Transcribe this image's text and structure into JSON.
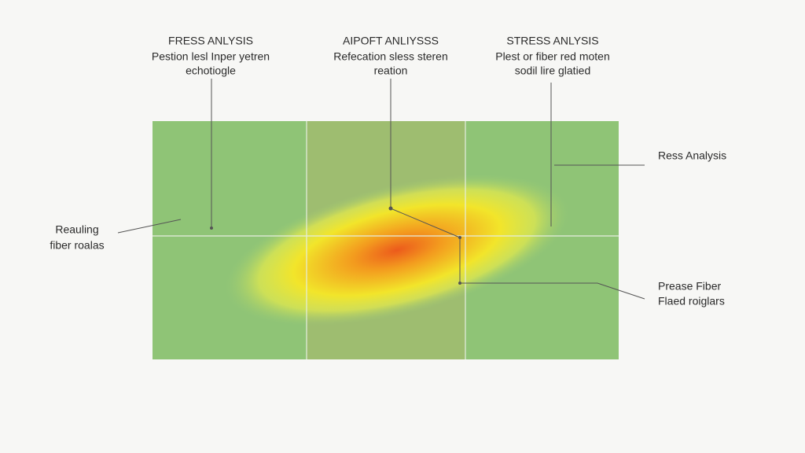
{
  "top_labels": [
    {
      "title": "FRESS ANLYSIS",
      "lines": [
        "Pestion lesl Inper yetren",
        "echotiogle"
      ]
    },
    {
      "title": "AIPOFT ANLIYSSS",
      "lines": [
        "Refecation sless steren",
        "reation"
      ]
    },
    {
      "title": "STRESS ANLYSIS",
      "lines": [
        "Plest or fiber red moten",
        "sodil lire glatied"
      ]
    }
  ],
  "side_labels": {
    "left": [
      "Reauling",
      "fiber roalas"
    ],
    "right_top": [
      "Ress Analysis"
    ],
    "right_bottom": [
      "Prease Fiber",
      "Flaed roiglars"
    ]
  }
}
